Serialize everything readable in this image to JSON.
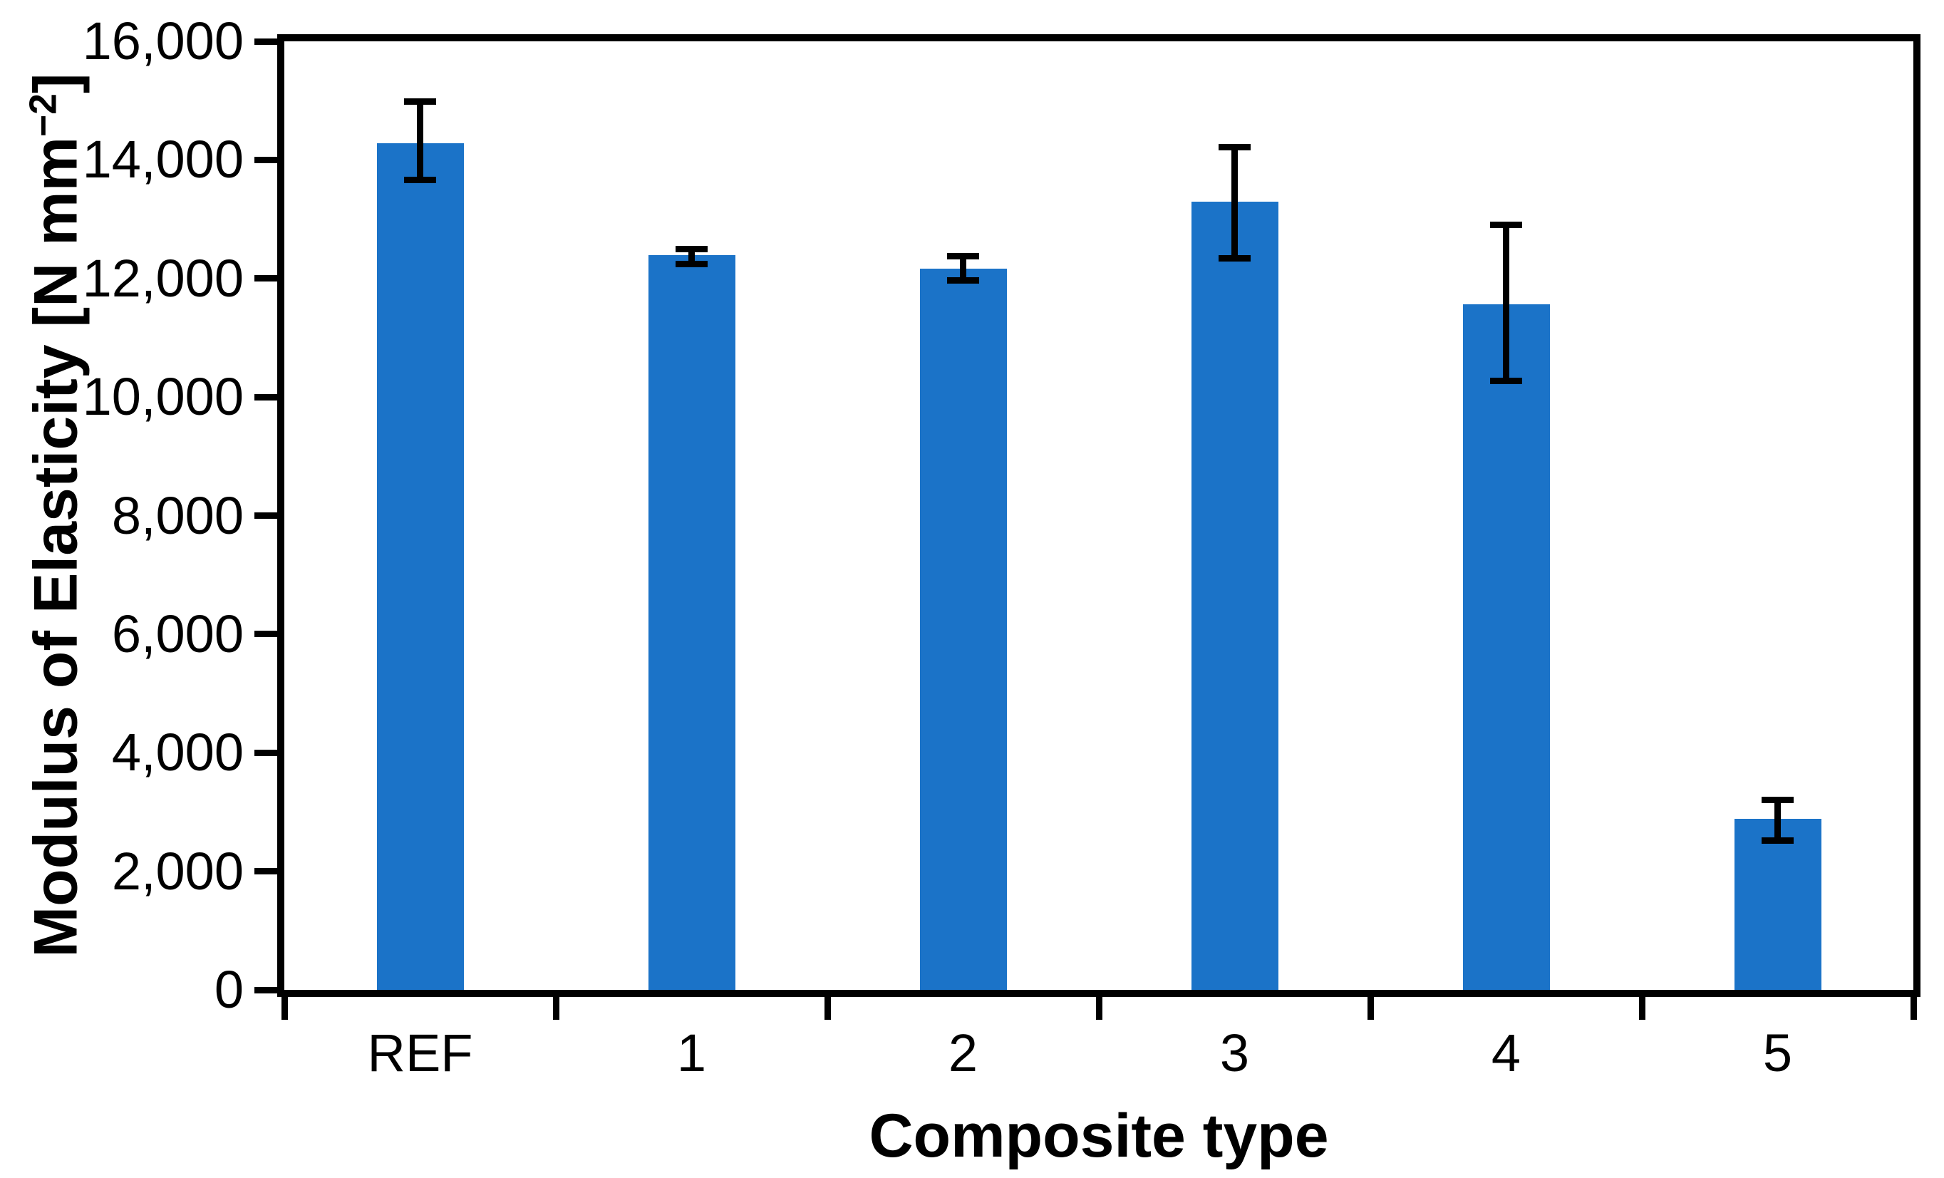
{
  "chart_data": {
    "type": "bar",
    "title": "",
    "xlabel": "Composite type",
    "ylabel": "Modulus of Elasticity [N mm−2]",
    "ylabel_parts": {
      "prefix": "Modulus of Elasticity [N mm",
      "sup": "−2",
      "suffix": "]"
    },
    "categories": [
      "REF",
      "1",
      "2",
      "3",
      "4",
      "5"
    ],
    "values": [
      14280,
      12390,
      12160,
      13290,
      11560,
      2880
    ],
    "error_low": [
      13660,
      12240,
      11970,
      12340,
      10270,
      2520
    ],
    "error_high": [
      14980,
      12490,
      12380,
      14210,
      12900,
      3200
    ],
    "ylim": [
      0,
      16000
    ],
    "ytick_step": 2000,
    "ytick_values": [
      0,
      2000,
      4000,
      6000,
      8000,
      10000,
      12000,
      14000,
      16000
    ],
    "ytick_labels": [
      "0",
      "2,000",
      "4,000",
      "6,000",
      "8,000",
      "10,000",
      "12,000",
      "14,000",
      "16,000"
    ],
    "grid": "off",
    "legend": "none",
    "bar_color": "#1B73C8",
    "error_bar_color": "#000000",
    "axis_color": "#000000",
    "background_color": "#FFFFFF"
  }
}
